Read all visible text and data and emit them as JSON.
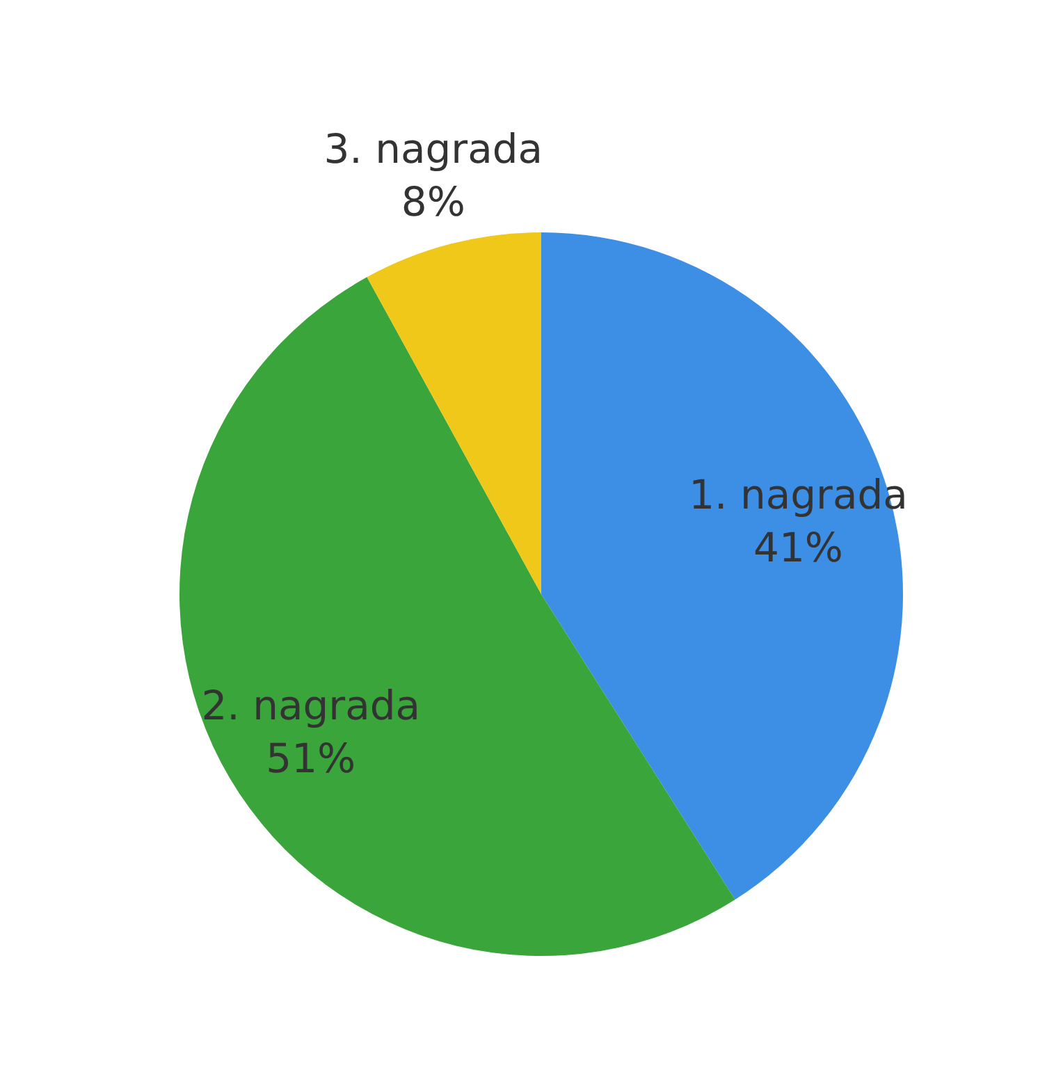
{
  "chart_data": {
    "type": "pie",
    "categories": [
      "1. nagrada",
      "2. nagrada",
      "3. nagrada"
    ],
    "values": [
      41,
      51,
      8
    ],
    "colors": [
      "#3d8fe6",
      "#3aa53a",
      "#f0c819"
    ],
    "value_labels": [
      "41%",
      "51%",
      "8%"
    ]
  }
}
